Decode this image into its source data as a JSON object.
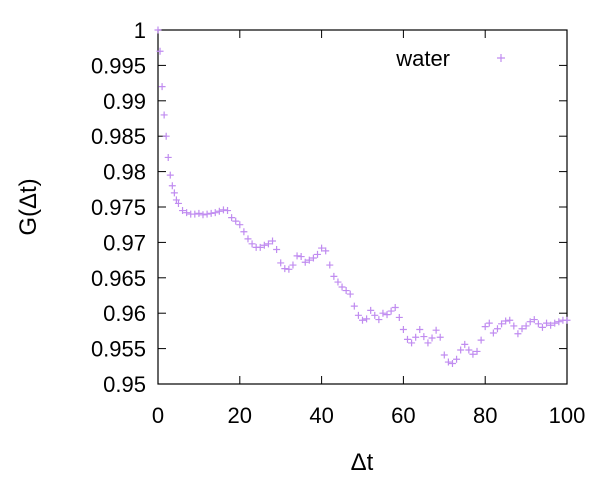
{
  "chart_data": {
    "type": "scatter",
    "xlabel": "Δt",
    "ylabel": "G(Δt)",
    "xlim": [
      0,
      100
    ],
    "ylim": [
      0.95,
      1
    ],
    "grid": false,
    "legend_position": "top-right",
    "x_ticks": [
      "0",
      "20",
      "40",
      "60",
      "80",
      "100"
    ],
    "y_ticks": [
      "0.95",
      "0.955",
      "0.96",
      "0.965",
      "0.97",
      "0.975",
      "0.98",
      "0.985",
      "0.99",
      "0.995",
      "1"
    ],
    "series": [
      {
        "name": "water",
        "color": "#c08cf0",
        "marker": "plus",
        "x": [
          0,
          0.5,
          1,
          1.5,
          2,
          2.5,
          3,
          3.5,
          4,
          4.5,
          5,
          6,
          7,
          8,
          9,
          10,
          11,
          12,
          13,
          14,
          15,
          16,
          17,
          18,
          19,
          20,
          21,
          22,
          23,
          24,
          25,
          26,
          27,
          28,
          29,
          30,
          31,
          32,
          33,
          34,
          35,
          36,
          37,
          38,
          39,
          40,
          41,
          42,
          43,
          44,
          45,
          46,
          47,
          48,
          49,
          50,
          51,
          52,
          53,
          54,
          55,
          56,
          57,
          58,
          59,
          60,
          61,
          62,
          63,
          64,
          65,
          66,
          67,
          68,
          69,
          70,
          71,
          72,
          73,
          74,
          75,
          76,
          77,
          78,
          79,
          80,
          81,
          82,
          83,
          84,
          85,
          86,
          87,
          88,
          89,
          90,
          91,
          92,
          93,
          94,
          95,
          96,
          97,
          98,
          99,
          100
        ],
        "y": [
          1.0,
          0.997,
          0.992,
          0.988,
          0.985,
          0.982,
          0.9795,
          0.978,
          0.977,
          0.976,
          0.9755,
          0.9745,
          0.9742,
          0.974,
          0.974,
          0.9741,
          0.9739,
          0.974,
          0.9741,
          0.9742,
          0.9744,
          0.9746,
          0.9745,
          0.9735,
          0.973,
          0.9725,
          0.9715,
          0.9705,
          0.9698,
          0.9693,
          0.9693,
          0.9696,
          0.9698,
          0.9702,
          0.969,
          0.9671,
          0.9663,
          0.9662,
          0.9668,
          0.9681,
          0.968,
          0.9672,
          0.9675,
          0.9678,
          0.9683,
          0.9692,
          0.9688,
          0.9668,
          0.9652,
          0.9644,
          0.9637,
          0.9632,
          0.9627,
          0.961,
          0.9597,
          0.959,
          0.9592,
          0.9604,
          0.9597,
          0.9591,
          0.96,
          0.9598,
          0.9603,
          0.9608,
          0.9594,
          0.9577,
          0.9563,
          0.9558,
          0.9566,
          0.9577,
          0.9567,
          0.9558,
          0.9565,
          0.9576,
          0.9566,
          0.9541,
          0.9531,
          0.9529,
          0.9535,
          0.9548,
          0.9556,
          0.9548,
          0.9542,
          0.9546,
          0.9562,
          0.9581,
          0.9586,
          0.9572,
          0.9578,
          0.9585,
          0.9589,
          0.959,
          0.9582,
          0.9571,
          0.9578,
          0.9582,
          0.9588,
          0.9591,
          0.9585,
          0.958,
          0.9586,
          0.9583,
          0.9586,
          0.9588,
          0.959,
          0.959
        ]
      }
    ]
  }
}
